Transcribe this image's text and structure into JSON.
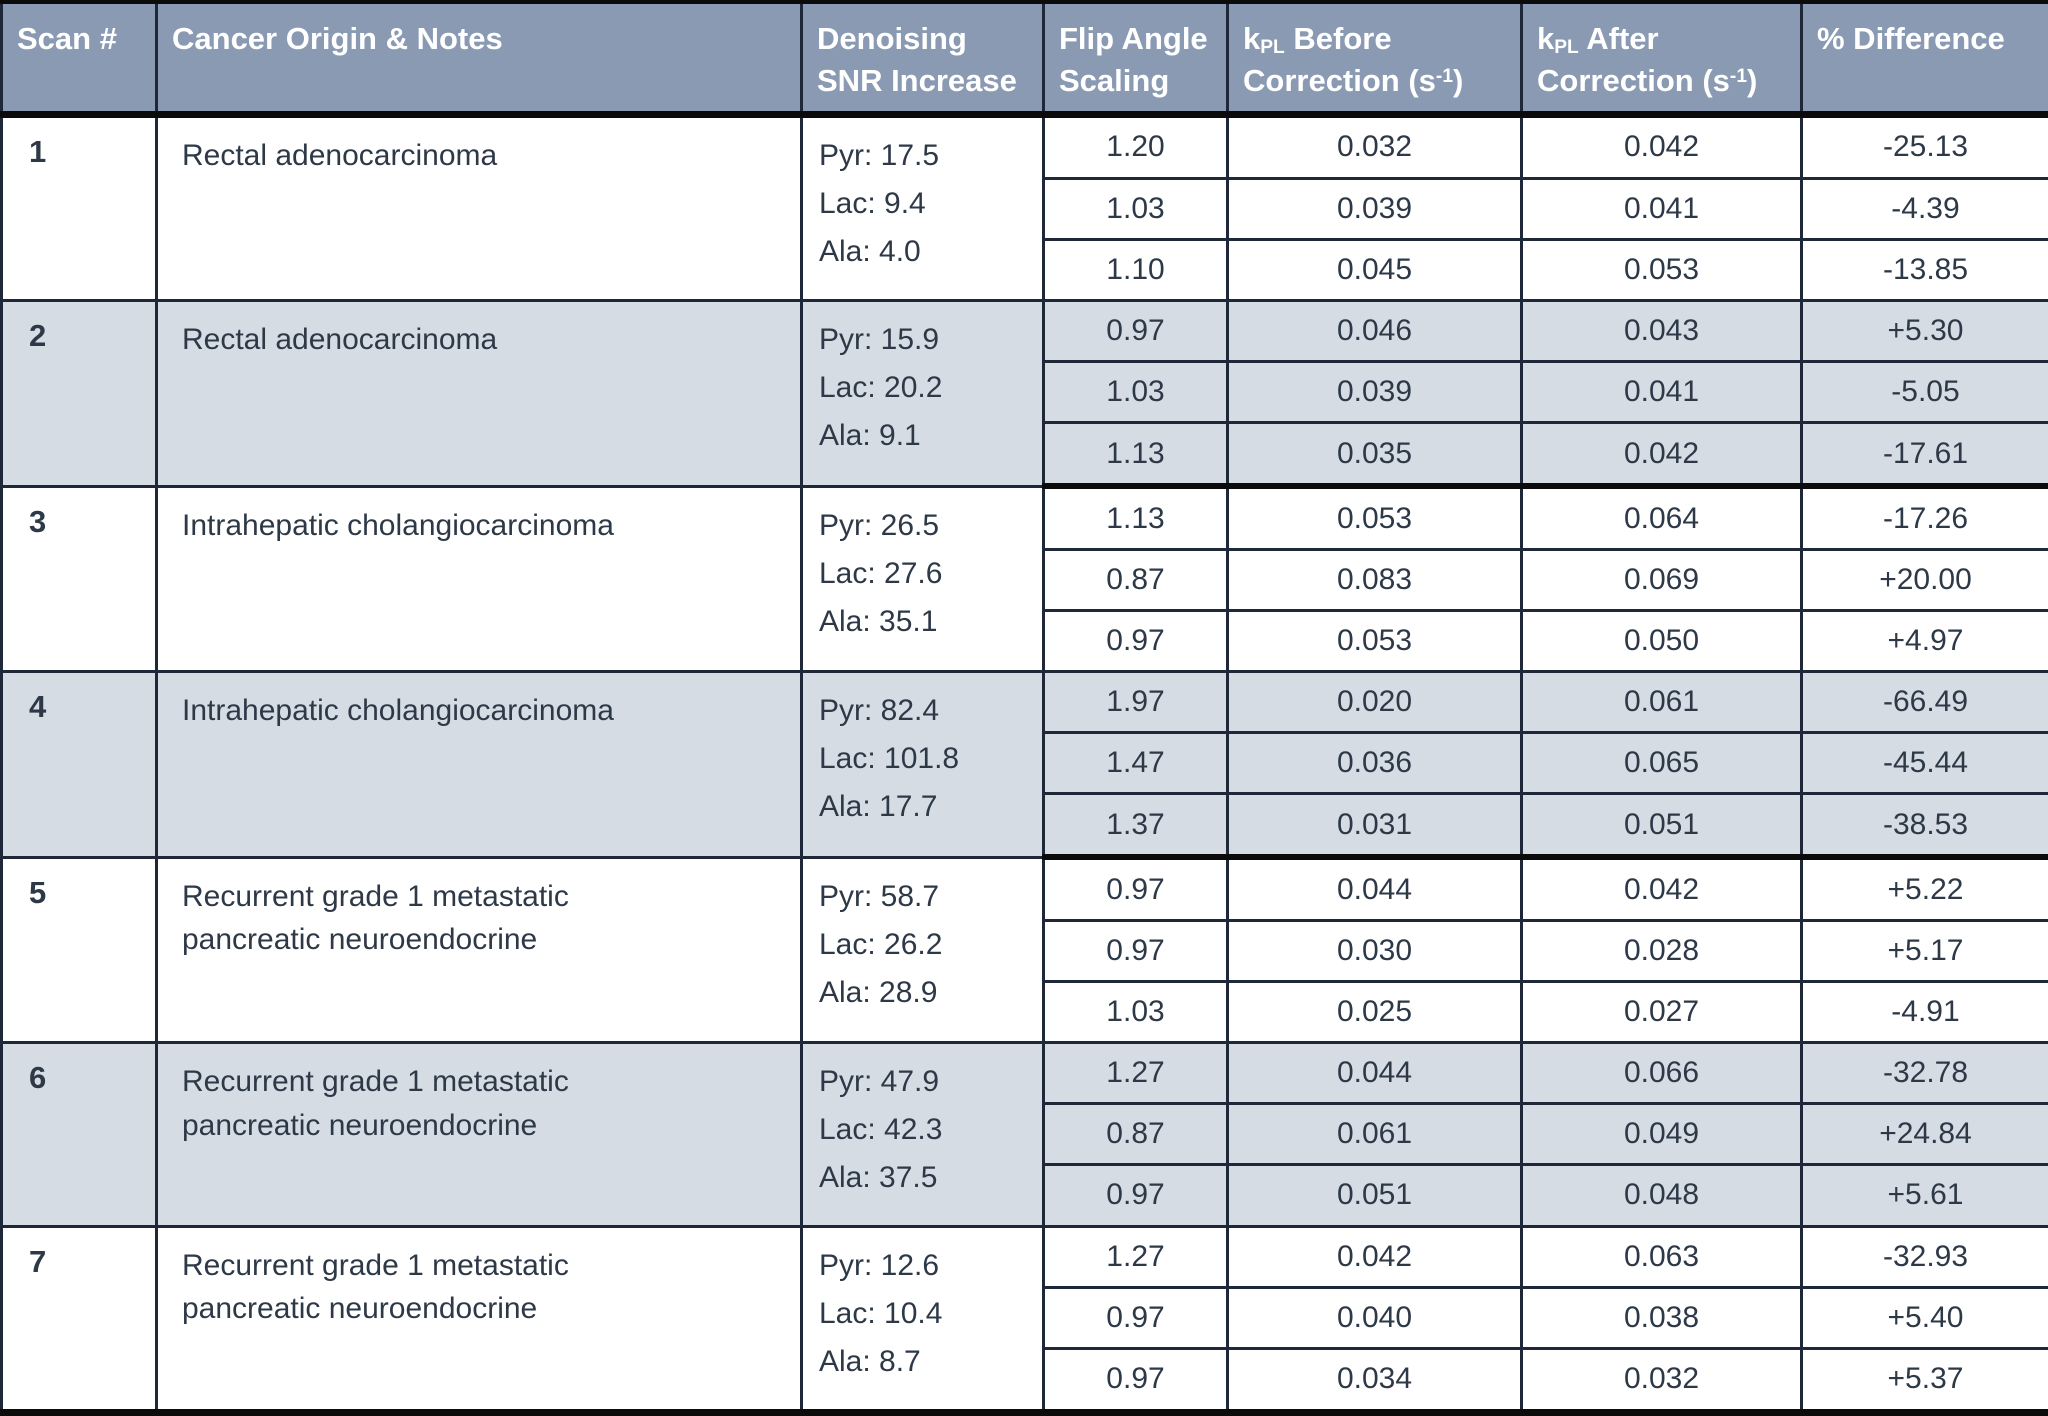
{
  "table": {
    "headers": {
      "scan": "Scan #",
      "origin": "Cancer Origin & Notes",
      "snr": "Denoising SNR Increase",
      "flip": "Flip Angle Scaling",
      "kpl_before": {
        "base": "k",
        "sub": "PL",
        "mid": " Before Correction (s",
        "sup": "-1",
        "end": ")"
      },
      "kpl_after": {
        "base": "k",
        "sub": "PL",
        "mid": " After Correction (s",
        "sup": "-1",
        "end": ")"
      },
      "diff": "% Difference"
    },
    "groups": [
      {
        "scan": "1",
        "origin": "Rectal adenocarcinoma",
        "snr": [
          "Pyr: 17.5",
          "Lac: 9.4",
          "Ala: 4.0"
        ],
        "rows": [
          [
            "1.20",
            "0.032",
            "0.042",
            "-25.13"
          ],
          [
            "1.03",
            "0.039",
            "0.041",
            "-4.39"
          ],
          [
            "1.10",
            "0.045",
            "0.053",
            "-13.85"
          ]
        ]
      },
      {
        "scan": "2",
        "origin": "Rectal adenocarcinoma",
        "snr": [
          "Pyr: 15.9",
          "Lac: 20.2",
          "Ala: 9.1"
        ],
        "rows": [
          [
            "0.97",
            "0.046",
            "0.043",
            "+5.30"
          ],
          [
            "1.03",
            "0.039",
            "0.041",
            "-5.05"
          ],
          [
            "1.13",
            "0.035",
            "0.042",
            "-17.61"
          ]
        ]
      },
      {
        "scan": "3",
        "origin": "Intrahepatic cholangiocarcinoma",
        "snr": [
          "Pyr: 26.5",
          "Lac: 27.6",
          "Ala: 35.1"
        ],
        "rows": [
          [
            "1.13",
            "0.053",
            "0.064",
            "-17.26"
          ],
          [
            "0.87",
            "0.083",
            "0.069",
            "+20.00"
          ],
          [
            "0.97",
            "0.053",
            "0.050",
            "+4.97"
          ]
        ]
      },
      {
        "scan": "4",
        "origin": "Intrahepatic cholangiocarcinoma",
        "snr": [
          "Pyr: 82.4",
          "Lac: 101.8",
          "Ala: 17.7"
        ],
        "rows": [
          [
            "1.97",
            "0.020",
            "0.061",
            "-66.49"
          ],
          [
            "1.47",
            "0.036",
            "0.065",
            "-45.44"
          ],
          [
            "1.37",
            "0.031",
            "0.051",
            "-38.53"
          ]
        ]
      },
      {
        "scan": "5",
        "origin": "Recurrent grade 1 metastatic pancreatic neuroendocrine",
        "snr": [
          "Pyr: 58.7",
          "Lac: 26.2",
          "Ala: 28.9"
        ],
        "rows": [
          [
            "0.97",
            "0.044",
            "0.042",
            "+5.22"
          ],
          [
            "0.97",
            "0.030",
            "0.028",
            "+5.17"
          ],
          [
            "1.03",
            "0.025",
            "0.027",
            "-4.91"
          ]
        ]
      },
      {
        "scan": "6",
        "origin": "Recurrent grade 1 metastatic pancreatic neuroendocrine",
        "snr": [
          "Pyr: 47.9",
          "Lac: 42.3",
          "Ala: 37.5"
        ],
        "rows": [
          [
            "1.27",
            "0.044",
            "0.066",
            "-32.78"
          ],
          [
            "0.87",
            "0.061",
            "0.049",
            "+24.84"
          ],
          [
            "0.97",
            "0.051",
            "0.048",
            "+5.61"
          ]
        ]
      },
      {
        "scan": "7",
        "origin": "Recurrent grade 1 metastatic pancreatic neuroendocrine",
        "snr": [
          "Pyr: 12.6",
          "Lac: 10.4",
          "Ala: 8.7"
        ],
        "rows": [
          [
            "1.27",
            "0.042",
            "0.063",
            "-32.93"
          ],
          [
            "0.97",
            "0.040",
            "0.038",
            "+5.40"
          ],
          [
            "0.97",
            "0.034",
            "0.032",
            "+5.37"
          ]
        ]
      }
    ]
  },
  "colors": {
    "header_bg": "#8a9ab3",
    "row_bg": "#ffffff",
    "row_alt_bg": "#d6dce4",
    "border": "#1e2838",
    "border_thick": "#0b0b0b",
    "text": "#2e3948",
    "header_text": "#ffffff"
  }
}
